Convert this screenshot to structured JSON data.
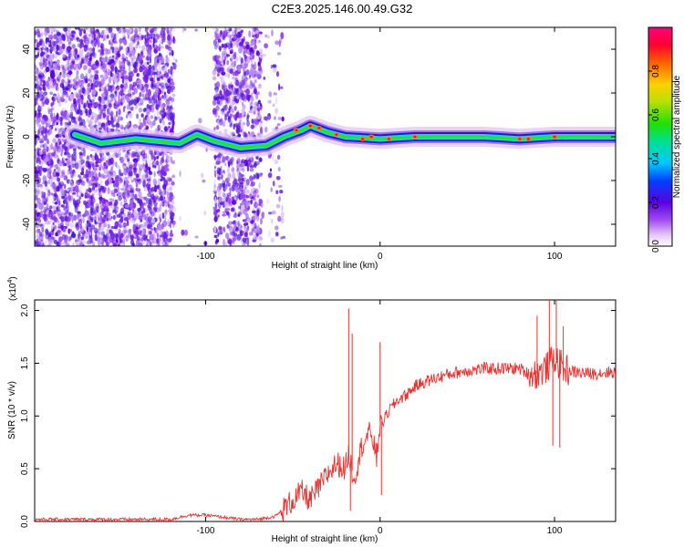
{
  "title": "C2E3.2025.146.00.49.G32",
  "chart_data": [
    {
      "type": "heatmap",
      "xlabel": "Height of straight line (km)",
      "ylabel": "Frequency (Hz)",
      "xlim": [
        -198,
        135
      ],
      "ylim": [
        -50,
        50
      ],
      "x_ticks": [
        -100,
        0,
        100
      ],
      "y_ticks": [
        -40,
        -20,
        0,
        20,
        40
      ],
      "colorbar": {
        "label": "Normalized spectral amplitude",
        "range": [
          0,
          1
        ],
        "ticks": [
          "0.0",
          "0.2",
          "0.4",
          "0.6",
          "0.8"
        ],
        "tick_values": [
          0.0,
          0.2,
          0.4,
          0.6,
          0.8
        ]
      },
      "ridge": [
        {
          "x": -175,
          "f": 1
        },
        {
          "x": -160,
          "f": -3
        },
        {
          "x": -140,
          "f": -1
        },
        {
          "x": -115,
          "f": -3
        },
        {
          "x": -105,
          "f": 1
        },
        {
          "x": -95,
          "f": -2
        },
        {
          "x": -80,
          "f": -5
        },
        {
          "x": -65,
          "f": -4
        },
        {
          "x": -55,
          "f": 0
        },
        {
          "x": -45,
          "f": 3
        },
        {
          "x": -40,
          "f": 5
        },
        {
          "x": -30,
          "f": 2
        },
        {
          "x": -20,
          "f": 0
        },
        {
          "x": 0,
          "f": -1
        },
        {
          "x": 20,
          "f": 0
        },
        {
          "x": 60,
          "f": 0
        },
        {
          "x": 80,
          "f": -1
        },
        {
          "x": 100,
          "f": 0
        },
        {
          "x": 135,
          "f": 0
        }
      ]
    },
    {
      "type": "line",
      "xlabel": "Height of straight line (km)",
      "ylabel": "SNR (10 * v/v)",
      "scale_label": "(x10",
      "scale_exp": "4",
      "scale_close": ")",
      "xlim": [
        -198,
        135
      ],
      "ylim": [
        0,
        2.1
      ],
      "x_ticks": [
        -100,
        0,
        100
      ],
      "y_ticks": [
        "0.0",
        "0.5",
        "1.0",
        "1.5",
        "2.0"
      ],
      "y_tick_values": [
        0.0,
        0.5,
        1.0,
        1.5,
        2.0
      ],
      "color": "#e8322f",
      "series": [
        {
          "x": [
            -198,
            -160,
            -120,
            -110,
            -100,
            -90,
            -80,
            -70,
            -60,
            -50,
            -45,
            -40,
            -35,
            -30,
            -25,
            -20,
            -18,
            -15,
            -10,
            -5,
            -2,
            0,
            2,
            5,
            10,
            15,
            20,
            25,
            30,
            40,
            50,
            60,
            70,
            80,
            85,
            90,
            95,
            100,
            105,
            110,
            120,
            135
          ],
          "y": [
            0.02,
            0.02,
            0.02,
            0.06,
            0.06,
            0.04,
            0.02,
            0.02,
            0.05,
            0.2,
            0.28,
            0.2,
            0.32,
            0.45,
            0.55,
            0.5,
            0.65,
            0.4,
            0.75,
            0.85,
            0.6,
            0.95,
            0.95,
            1.05,
            1.15,
            1.2,
            1.28,
            1.32,
            1.35,
            1.4,
            1.43,
            1.45,
            1.45,
            1.45,
            1.4,
            1.4,
            1.45,
            1.55,
            1.45,
            1.42,
            1.4,
            1.42
          ]
        }
      ],
      "spikes": [
        {
          "x": -18,
          "y": 2.02
        },
        {
          "x": -17,
          "y": 0.1
        },
        {
          "x": -16,
          "y": 1.78
        },
        {
          "x": 0,
          "y": 1.7
        },
        {
          "x": 0.8,
          "y": 0.25
        },
        {
          "x": 90,
          "y": 1.95
        },
        {
          "x": 97,
          "y": 2.1
        },
        {
          "x": 99,
          "y": 0.72
        },
        {
          "x": 101,
          "y": 2.1
        },
        {
          "x": 103,
          "y": 0.7
        },
        {
          "x": 105,
          "y": 1.85
        }
      ]
    }
  ]
}
